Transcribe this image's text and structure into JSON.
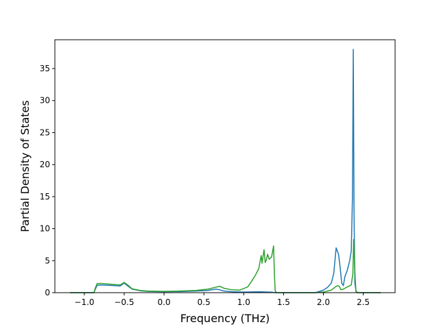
{
  "chart_data": {
    "type": "line",
    "title": "",
    "xlabel": "Frequency (THz)",
    "ylabel": "Partial Density of States",
    "xlim": [
      -1.37,
      2.9
    ],
    "ylim": [
      0,
      39.5
    ],
    "x_ticks": [
      -1.0,
      -0.5,
      0.0,
      0.5,
      1.0,
      1.5,
      2.0,
      2.5
    ],
    "x_tick_labels": [
      "−1.0",
      "−0.5",
      "0.0",
      "0.5",
      "1.0",
      "1.5",
      "2.0",
      "2.5"
    ],
    "y_ticks": [
      0,
      5,
      10,
      15,
      20,
      25,
      30,
      35
    ],
    "y_tick_labels": [
      "0",
      "5",
      "10",
      "15",
      "20",
      "25",
      "30",
      "35"
    ],
    "grid": false,
    "legend": "none",
    "series": [
      {
        "color": "#1f77b4",
        "points": [
          [
            -1.18,
            0
          ],
          [
            -0.88,
            0
          ],
          [
            -0.86,
            0.6
          ],
          [
            -0.84,
            1.15
          ],
          [
            -0.8,
            1.2
          ],
          [
            -0.7,
            1.15
          ],
          [
            -0.6,
            1.1
          ],
          [
            -0.55,
            1.05
          ],
          [
            -0.5,
            1.5
          ],
          [
            -0.45,
            1.0
          ],
          [
            -0.4,
            0.55
          ],
          [
            -0.3,
            0.3
          ],
          [
            -0.2,
            0.2
          ],
          [
            0,
            0.15
          ],
          [
            0.2,
            0.18
          ],
          [
            0.4,
            0.25
          ],
          [
            0.55,
            0.35
          ],
          [
            0.65,
            0.55
          ],
          [
            0.7,
            0.45
          ],
          [
            0.75,
            0.25
          ],
          [
            0.85,
            0.15
          ],
          [
            1.0,
            0.1
          ],
          [
            1.2,
            0.15
          ],
          [
            1.35,
            0.08
          ],
          [
            1.4,
            0
          ],
          [
            1.9,
            0
          ],
          [
            2.0,
            0.4
          ],
          [
            2.05,
            0.8
          ],
          [
            2.1,
            1.5
          ],
          [
            2.13,
            3.0
          ],
          [
            2.16,
            7.0
          ],
          [
            2.19,
            6.0
          ],
          [
            2.21,
            4.0
          ],
          [
            2.23,
            1.5
          ],
          [
            2.25,
            1.1
          ],
          [
            2.27,
            2.5
          ],
          [
            2.3,
            3.5
          ],
          [
            2.33,
            5.0
          ],
          [
            2.35,
            6.5
          ],
          [
            2.365,
            15.0
          ],
          [
            2.375,
            38.0
          ],
          [
            2.385,
            12.0
          ],
          [
            2.395,
            1.5
          ],
          [
            2.41,
            0.2
          ],
          [
            2.43,
            0
          ],
          [
            2.72,
            0
          ]
        ]
      },
      {
        "color": "#2ca02c",
        "points": [
          [
            -1.18,
            0
          ],
          [
            -0.88,
            0
          ],
          [
            -0.86,
            0.8
          ],
          [
            -0.84,
            1.4
          ],
          [
            -0.8,
            1.45
          ],
          [
            -0.7,
            1.35
          ],
          [
            -0.6,
            1.25
          ],
          [
            -0.55,
            1.2
          ],
          [
            -0.5,
            1.6
          ],
          [
            -0.45,
            1.15
          ],
          [
            -0.4,
            0.6
          ],
          [
            -0.3,
            0.35
          ],
          [
            -0.2,
            0.25
          ],
          [
            0,
            0.2
          ],
          [
            0.2,
            0.25
          ],
          [
            0.4,
            0.35
          ],
          [
            0.55,
            0.55
          ],
          [
            0.65,
            0.85
          ],
          [
            0.7,
            1.0
          ],
          [
            0.75,
            0.7
          ],
          [
            0.85,
            0.45
          ],
          [
            0.95,
            0.4
          ],
          [
            1.05,
            0.9
          ],
          [
            1.1,
            1.8
          ],
          [
            1.15,
            2.8
          ],
          [
            1.19,
            3.8
          ],
          [
            1.21,
            5.2
          ],
          [
            1.22,
            5.8
          ],
          [
            1.23,
            4.6
          ],
          [
            1.255,
            6.7
          ],
          [
            1.27,
            4.7
          ],
          [
            1.285,
            5.2
          ],
          [
            1.3,
            6.0
          ],
          [
            1.32,
            5.2
          ],
          [
            1.35,
            5.6
          ],
          [
            1.375,
            7.3
          ],
          [
            1.385,
            3.0
          ],
          [
            1.395,
            0.3
          ],
          [
            1.41,
            0
          ],
          [
            1.9,
            0
          ],
          [
            2.0,
            0.1
          ],
          [
            2.1,
            0.4
          ],
          [
            2.15,
            0.9
          ],
          [
            2.18,
            1.1
          ],
          [
            2.2,
            1.0
          ],
          [
            2.22,
            0.45
          ],
          [
            2.25,
            0.55
          ],
          [
            2.3,
            0.9
          ],
          [
            2.35,
            1.2
          ],
          [
            2.37,
            3.0
          ],
          [
            2.38,
            8.3
          ],
          [
            2.39,
            5.0
          ],
          [
            2.4,
            2.0
          ],
          [
            2.41,
            0.1
          ],
          [
            2.43,
            0
          ],
          [
            2.72,
            0
          ]
        ]
      }
    ]
  }
}
